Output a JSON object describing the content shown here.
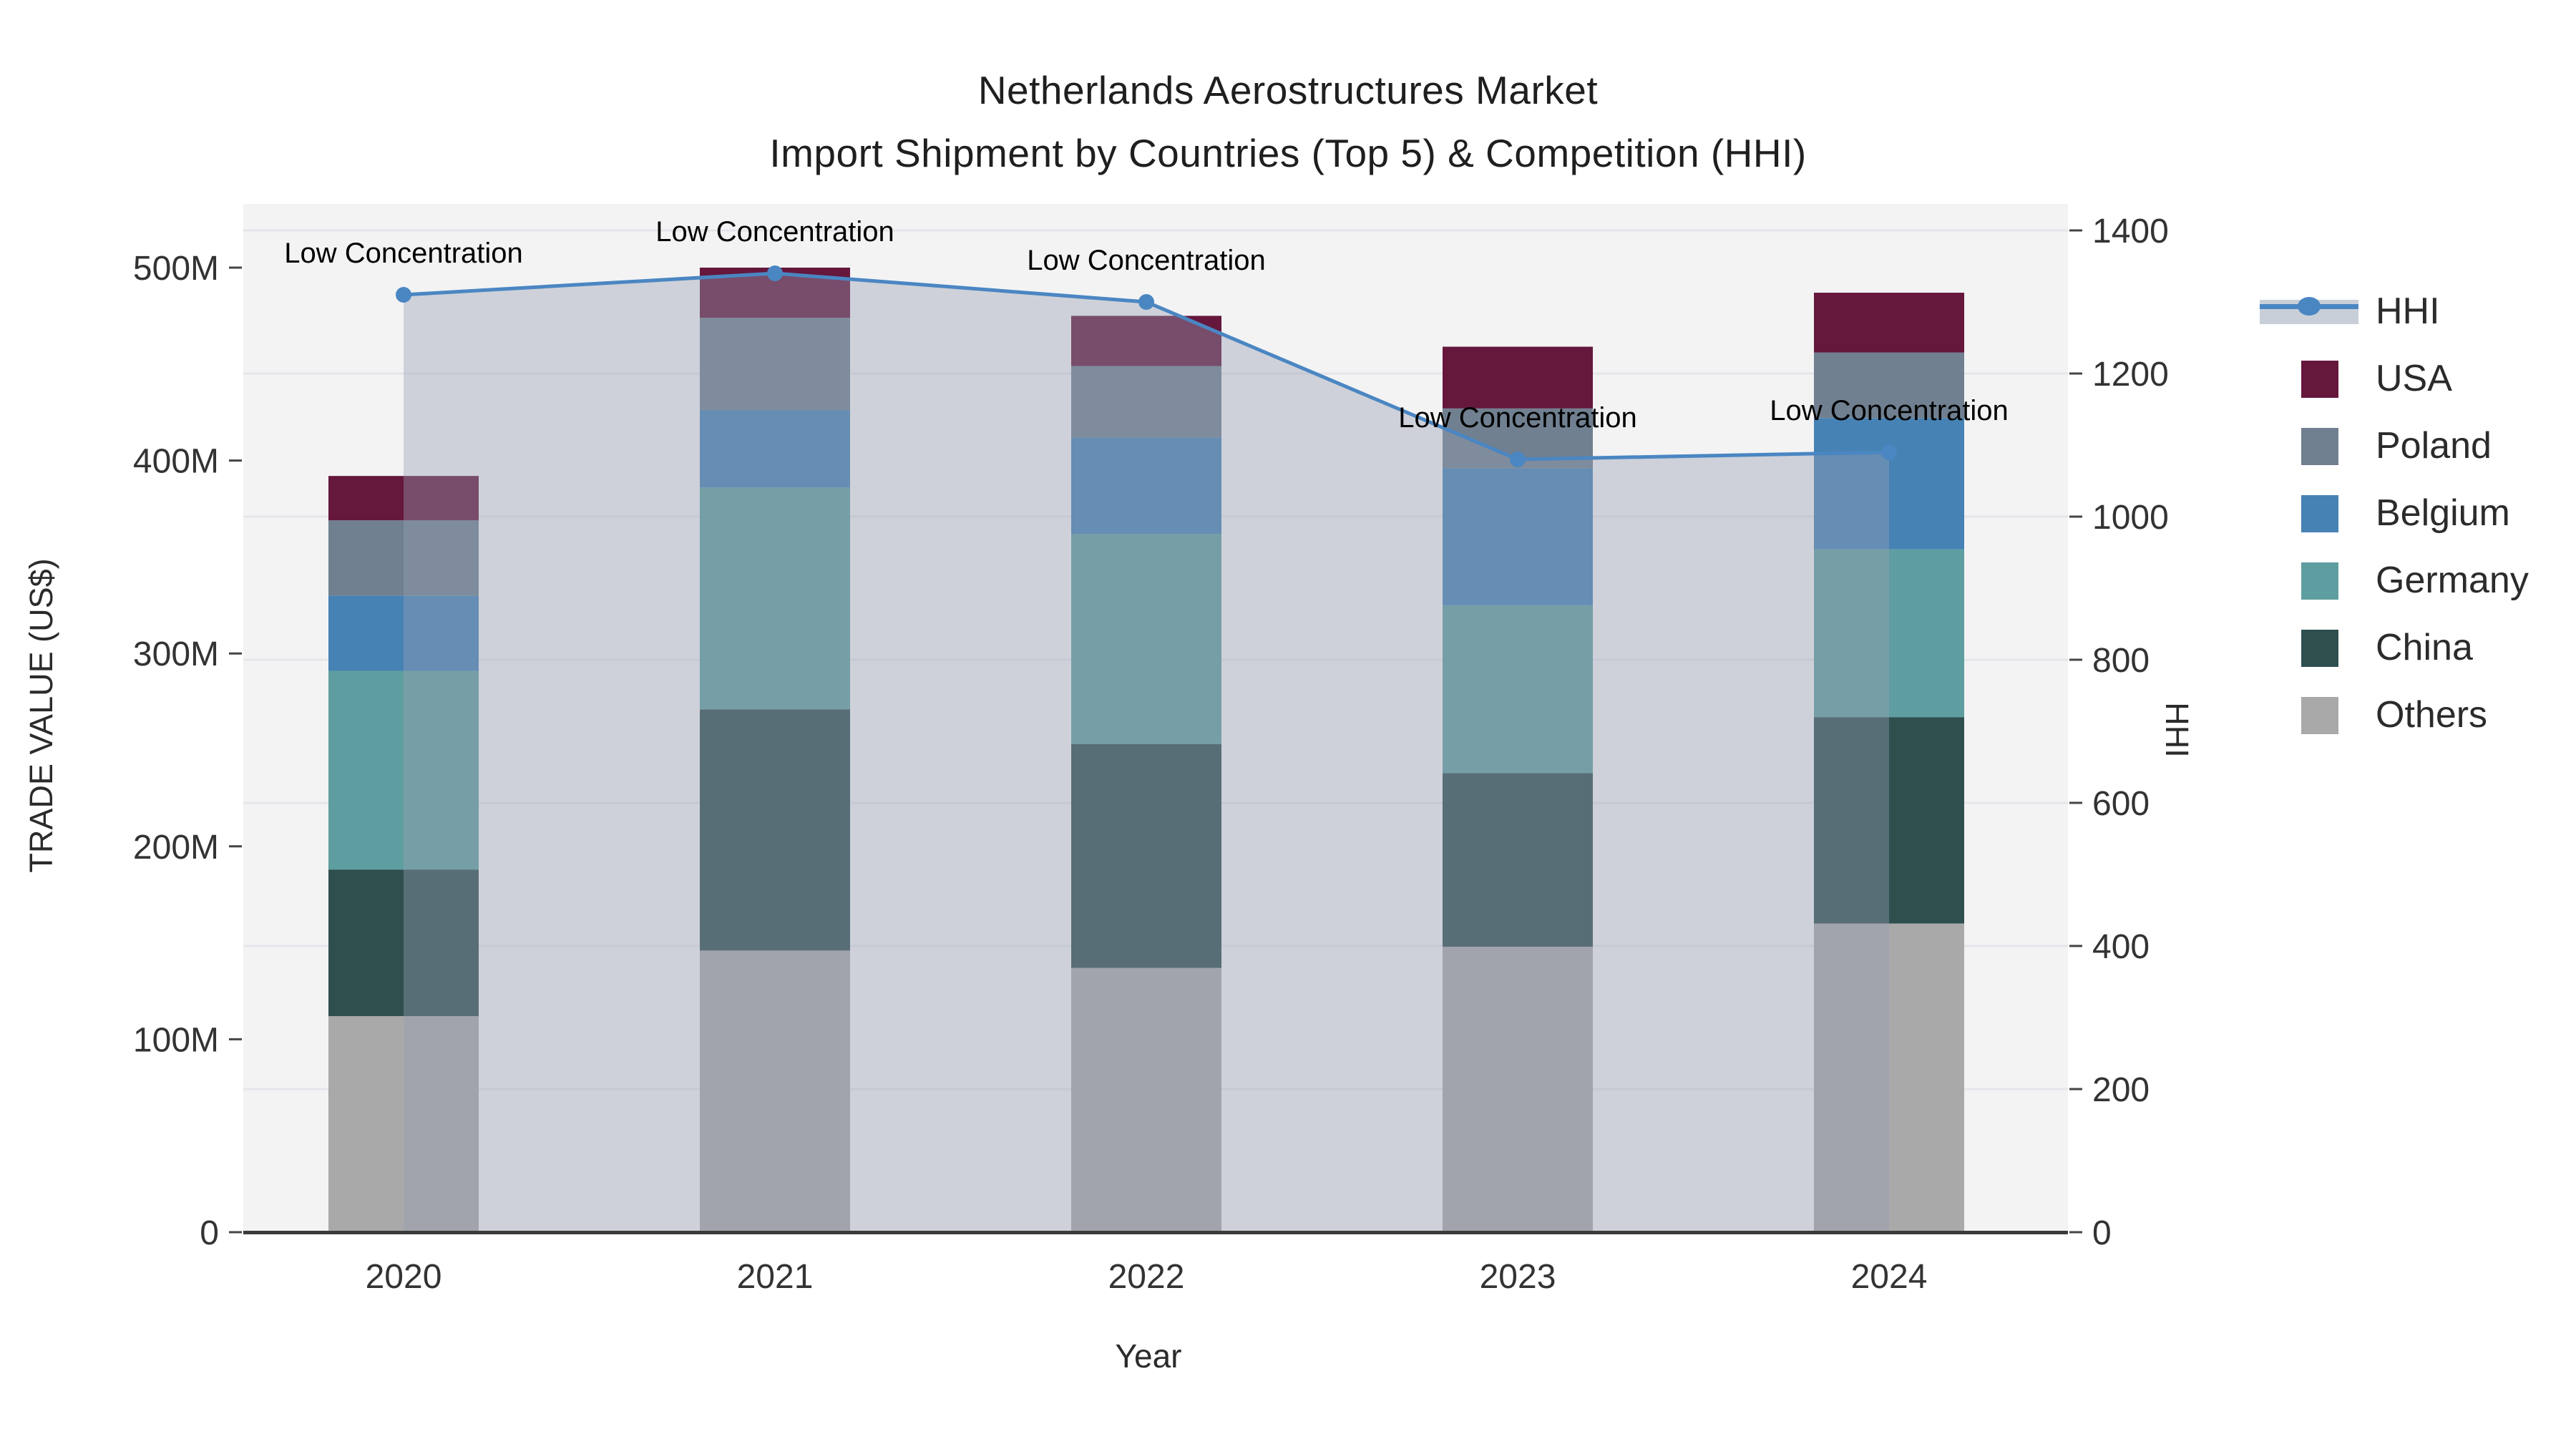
{
  "title": {
    "line1": "Netherlands Aerostructures Market",
    "line2": "Import Shipment by Countries (Top 5) & Competition (HHI)"
  },
  "chart_data": {
    "type": "bar",
    "subtype": "stacked-bar-with-line-overlay",
    "title": "Netherlands Aerostructures Market — Import Shipment by Countries (Top 5) & Competition (HHI)",
    "categories": [
      "2020",
      "2021",
      "2022",
      "2023",
      "2024"
    ],
    "xlabel": "Year",
    "ylabel_left": "TRADE VALUE (US$)",
    "ylabel_right": "HHI",
    "y_left_axis": {
      "tick_labels": [
        "0",
        "100M",
        "200M",
        "300M",
        "400M",
        "500M"
      ],
      "tick_values": [
        0,
        100,
        200,
        300,
        400,
        500
      ],
      "units": "million US$",
      "range": [
        0,
        533
      ]
    },
    "y_right_axis": {
      "tick_labels": [
        "0",
        "200",
        "400",
        "600",
        "800",
        "1000",
        "1200",
        "1400"
      ],
      "tick_values": [
        0,
        200,
        400,
        600,
        800,
        1000,
        1200,
        1400
      ],
      "range": [
        0,
        1437
      ],
      "grid": true
    },
    "series": [
      {
        "name": "Others",
        "color": "#a9a9a9",
        "values": [
          112,
          146,
          137,
          148,
          160
        ]
      },
      {
        "name": "China",
        "color": "#2f4f4f",
        "values": [
          76,
          125,
          116,
          90,
          107
        ]
      },
      {
        "name": "Germany",
        "color": "#5f9ea0",
        "values": [
          103,
          115,
          109,
          87,
          87
        ]
      },
      {
        "name": "Belgium",
        "color": "#4682b4",
        "values": [
          39,
          40,
          50,
          71,
          68
        ]
      },
      {
        "name": "Poland",
        "color": "#708090",
        "values": [
          39,
          48,
          37,
          31,
          34
        ]
      },
      {
        "name": "USA",
        "color": "#65173c",
        "values": [
          23,
          26,
          26,
          32,
          31
        ]
      }
    ],
    "stack_order": "bottom-to-top",
    "totals_million_usd": [
      392,
      500,
      475,
      459,
      487
    ],
    "hhi": {
      "name": "HHI",
      "values": [
        1310,
        1340,
        1300,
        1080,
        1090
      ],
      "line_color": "#4a86c2",
      "area_fill_color": "rgba(150,158,178,0.40)",
      "marker": "circle",
      "annotations": [
        "Low Concentration",
        "Low Concentration",
        "Low Concentration",
        "Low Concentration",
        "Low Concentration"
      ]
    },
    "legend": [
      {
        "label": "HHI",
        "type": "line-area"
      },
      {
        "label": "USA",
        "type": "swatch",
        "color": "#65173c"
      },
      {
        "label": "Poland",
        "type": "swatch",
        "color": "#708090"
      },
      {
        "label": "Belgium",
        "type": "swatch",
        "color": "#4682b4"
      },
      {
        "label": "Germany",
        "type": "swatch",
        "color": "#5f9ea0"
      },
      {
        "label": "China",
        "type": "swatch",
        "color": "#2f4f4f"
      },
      {
        "label": "Others",
        "type": "swatch",
        "color": "#a9a9a9"
      }
    ],
    "legend_position": "right",
    "plot_background": "#f3f3f4",
    "gridline_color": "#e4e6ea",
    "baseline_color": "#3b3b3b"
  }
}
